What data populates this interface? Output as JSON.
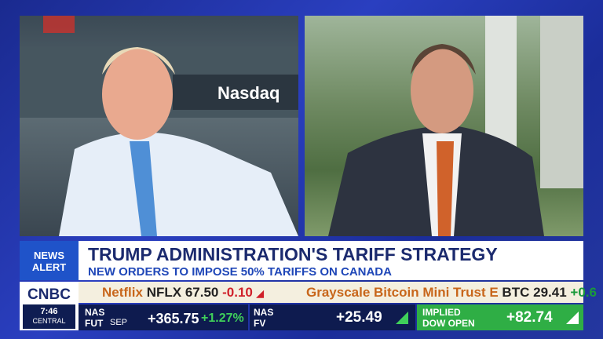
{
  "background_sign": "Nasdaq",
  "lower_third": {
    "badge": [
      "NEWS",
      "ALERT"
    ],
    "headline": "TRUMP ADMINISTRATION'S TARIFF STRATEGY",
    "subheadline": "NEW ORDERS TO IMPOSE 50% TARIFFS ON CANADA"
  },
  "network": {
    "logo": "CNBC",
    "time": "7:46",
    "zone": "CENTRAL"
  },
  "ticker": [
    {
      "name": "Netflix",
      "symbol": "NFLX",
      "price": "67.50",
      "change": "-0.10"
    },
    {
      "name": "Grayscale Bitcoin Mini Trust E",
      "symbol": "BTC",
      "price": "29.41",
      "change": "+0.6"
    }
  ],
  "markets": [
    {
      "label": [
        "NAS",
        "FUT"
      ],
      "period": "SEP",
      "value": "+365.75",
      "percent": "+1.27%"
    },
    {
      "label": [
        "NAS",
        "FV"
      ],
      "value": "+25.49"
    },
    {
      "label": [
        "IMPLIED",
        "DOW OPEN"
      ],
      "value": "+82.74"
    }
  ]
}
